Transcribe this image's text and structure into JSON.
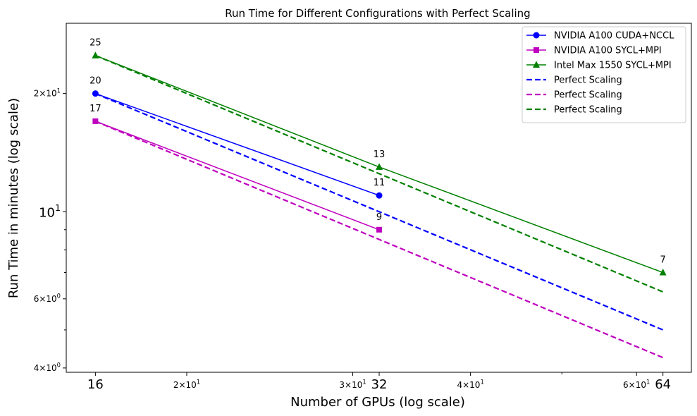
{
  "chart_data": {
    "type": "line",
    "title": "Run Time for Different Configurations with Perfect Scaling",
    "xlabel": "Number of GPUs (log scale)",
    "ylabel": "Run Time in minutes (log scale)",
    "xscale": "log",
    "yscale": "log",
    "xlim": [
      14.9,
      68.6
    ],
    "ylim": [
      3.9,
      30.2
    ],
    "grid": false,
    "legend_position": "top-right",
    "x_ticks_major": [
      {
        "value": 16,
        "label": "16"
      },
      {
        "value": 32,
        "label": "32"
      },
      {
        "value": 64,
        "label": "64"
      }
    ],
    "x_ticks_log": [
      {
        "value": 20,
        "base": "2×10",
        "exp": "1"
      },
      {
        "value": 30,
        "base": "3×10",
        "exp": "1"
      },
      {
        "value": 40,
        "base": "4×10",
        "exp": "1"
      },
      {
        "value": 60,
        "base": "6×10",
        "exp": "1"
      }
    ],
    "x_minor_ticks": [
      50
    ],
    "y_ticks": [
      {
        "value": 4,
        "base": "4×10",
        "exp": "0",
        "size": "small"
      },
      {
        "value": 6,
        "base": "6×10",
        "exp": "0",
        "size": "small"
      },
      {
        "value": 10,
        "base": "10",
        "exp": "1",
        "size": "large"
      },
      {
        "value": 20,
        "base": "2×10",
        "exp": "1",
        "size": "small"
      }
    ],
    "y_minor_ticks": [
      5,
      7,
      8,
      9
    ],
    "series": [
      {
        "name": "NVIDIA A100 CUDA+NCCL",
        "color": "#0000ff",
        "marker": "circle",
        "style": "solid",
        "points": [
          {
            "x": 16,
            "y": 20,
            "label": "20"
          },
          {
            "x": 32,
            "y": 11,
            "label": "11"
          }
        ]
      },
      {
        "name": "NVIDIA A100 SYCL+MPI",
        "color": "#bf00bf",
        "marker": "square",
        "style": "solid",
        "points": [
          {
            "x": 16,
            "y": 17,
            "label": "17"
          },
          {
            "x": 32,
            "y": 9,
            "label": "9"
          }
        ]
      },
      {
        "name": "Intel Max 1550 SYCL+MPI",
        "color": "#008000",
        "marker": "triangle",
        "style": "solid",
        "points": [
          {
            "x": 16,
            "y": 25,
            "label": "25"
          },
          {
            "x": 32,
            "y": 13,
            "label": "13"
          },
          {
            "x": 64,
            "y": 7,
            "label": "7"
          }
        ]
      },
      {
        "name": "Perfect Scaling",
        "color": "#0000ff",
        "marker": "none",
        "style": "dashed",
        "points": [
          {
            "x": 16,
            "y": 20
          },
          {
            "x": 64,
            "y": 5
          }
        ]
      },
      {
        "name": "Perfect Scaling",
        "color": "#bf00bf",
        "marker": "none",
        "style": "dashed",
        "points": [
          {
            "x": 16,
            "y": 17
          },
          {
            "x": 64,
            "y": 4.25
          }
        ]
      },
      {
        "name": "Perfect Scaling",
        "color": "#008000",
        "marker": "none",
        "style": "dashed",
        "points": [
          {
            "x": 16,
            "y": 25
          },
          {
            "x": 64,
            "y": 6.25
          }
        ]
      }
    ]
  }
}
